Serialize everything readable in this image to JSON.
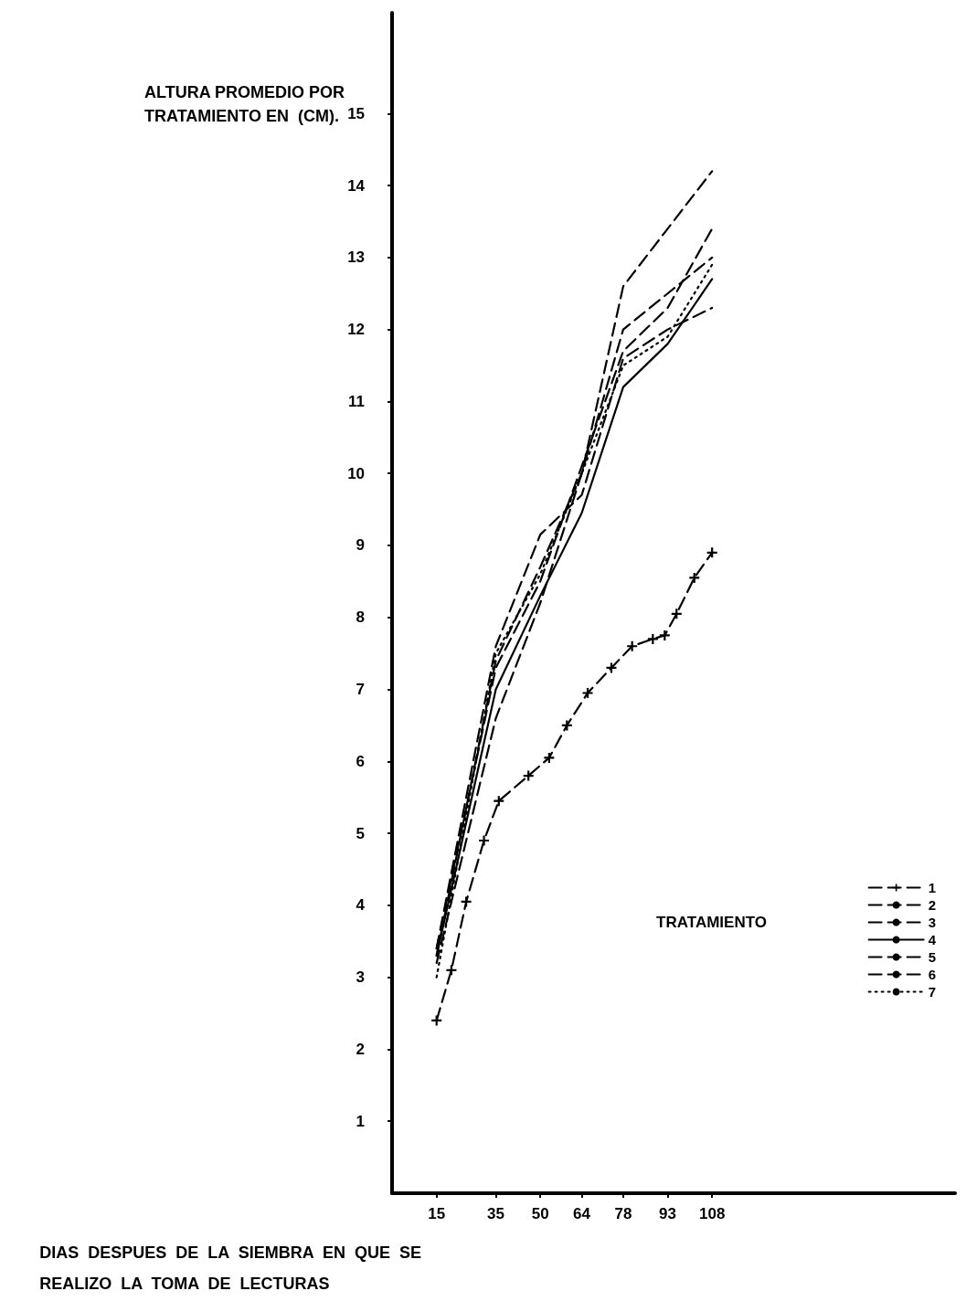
{
  "chart_data": {
    "type": "line",
    "title": "ALTURA PROMEDIO POR\nTRATAMIENTO EN  (CM).",
    "xlabel": "DIAS  DESPUES  DE  LA  SIEMBRA  EN  QUE  SE\nREALIZO  LA  TOMA  DE  LECTURAS",
    "legend_title": "TRATAMIENTO",
    "x": [
      15,
      35,
      50,
      64,
      78,
      93,
      108
    ],
    "series": [
      {
        "name": "1",
        "color": "#000000",
        "marker": "cross",
        "line_style": "dashed",
        "x": [
          15,
          20,
          25,
          31,
          36,
          46,
          53,
          59,
          66,
          74,
          81,
          88,
          92,
          96,
          102,
          108
        ],
        "values": [
          2.4,
          3.1,
          4.05,
          4.9,
          5.45,
          5.8,
          6.05,
          6.5,
          6.95,
          7.3,
          7.6,
          7.7,
          7.75,
          8.05,
          8.55,
          8.9
        ]
      },
      {
        "name": "2",
        "color": "#000000",
        "line_style": "dashed",
        "values": [
          3.4,
          7.6,
          9.15,
          9.7,
          11.6,
          12.0,
          12.3
        ]
      },
      {
        "name": "3",
        "color": "#000000",
        "line_style": "dashed",
        "values": [
          3.3,
          7.4,
          8.7,
          10.0,
          12.0,
          12.5,
          13.0
        ]
      },
      {
        "name": "4",
        "color": "#000000",
        "line_style": "solid",
        "values": [
          3.3,
          7.0,
          8.3,
          9.45,
          11.2,
          11.8,
          12.7
        ]
      },
      {
        "name": "5",
        "color": "#000000",
        "line_style": "dashed",
        "values": [
          3.4,
          7.3,
          8.5,
          10.1,
          11.7,
          12.3,
          13.4
        ]
      },
      {
        "name": "6",
        "color": "#000000",
        "line_style": "dashed",
        "values": [
          3.2,
          6.6,
          8.2,
          10.0,
          12.6,
          13.4,
          14.2
        ]
      },
      {
        "name": "7",
        "color": "#000000",
        "line_style": "dotted",
        "values": [
          3.0,
          7.5,
          8.6,
          10.0,
          11.5,
          11.9,
          12.9
        ]
      }
    ],
    "xlim": [
      0,
      190
    ],
    "xticks": [
      15,
      35,
      50,
      64,
      78,
      93,
      108
    ],
    "ylim": [
      0,
      16.4
    ],
    "yticks": [
      1,
      2,
      3,
      4,
      5,
      6,
      7,
      8,
      9,
      10,
      11,
      12,
      13,
      14,
      15
    ],
    "grid": false,
    "legend": "bottom right",
    "marker": "none"
  }
}
